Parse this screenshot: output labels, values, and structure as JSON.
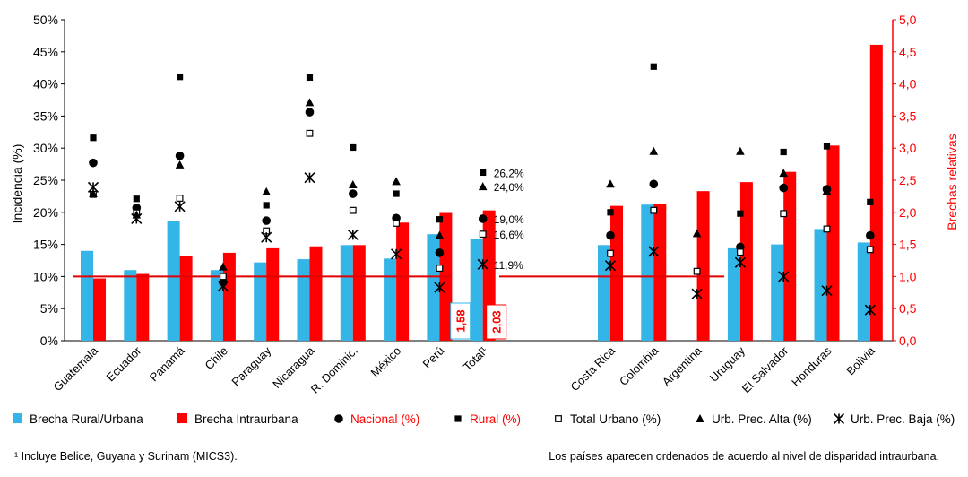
{
  "chart_data": {
    "type": "bar",
    "title": "",
    "ylabel": "Incidencia (%)",
    "y2label": "Brechas relativas",
    "ylim": [
      0,
      50
    ],
    "y2lim": [
      0,
      5
    ],
    "y_ticks": [
      "0%",
      "5%",
      "10%",
      "15%",
      "20%",
      "25%",
      "30%",
      "35%",
      "40%",
      "45%",
      "50%"
    ],
    "y2_ticks": [
      "0,0",
      "0,5",
      "1,0",
      "1,5",
      "2,0",
      "2,5",
      "3,0",
      "3,5",
      "4,0",
      "4,5",
      "5,0"
    ],
    "categories": [
      "Guatemala",
      "Ecuador",
      "Panamá",
      "Chile",
      "Paraguay",
      "Nicaragua",
      "R. Dominic.",
      "México",
      "Perú",
      "Total¹",
      "Costa Rica",
      "Colombia",
      "Argentina",
      "Uruguay",
      "El Salvador",
      "Honduras",
      "Bolivia"
    ],
    "bar_series": [
      {
        "name": "Brecha Rural/Urbana",
        "color": "#33b5e8",
        "axis": "right",
        "values": [
          1.4,
          1.1,
          1.86,
          1.1,
          1.22,
          1.27,
          1.49,
          1.28,
          1.66,
          1.58,
          1.49,
          2.12,
          null,
          1.44,
          1.5,
          1.74,
          1.53
        ]
      },
      {
        "name": "Brecha Intraurbana",
        "color": "#ff0000",
        "axis": "right",
        "values": [
          0.97,
          1.04,
          1.32,
          1.37,
          1.44,
          1.47,
          1.49,
          1.84,
          1.99,
          2.03,
          2.1,
          2.13,
          2.33,
          2.47,
          2.63,
          3.04,
          4.61
        ]
      }
    ],
    "marker_series": [
      {
        "name": "Nacional (%)",
        "marker": "circle",
        "axis": "left",
        "values": [
          27.7,
          20.7,
          28.8,
          9.1,
          18.7,
          35.6,
          22.9,
          19.1,
          13.7,
          19.0,
          16.4,
          24.4,
          null,
          14.6,
          23.8,
          23.6,
          16.4
        ]
      },
      {
        "name": "Rural (%)",
        "marker": "square",
        "axis": "left",
        "values": [
          31.6,
          22.1,
          41.1,
          null,
          21.1,
          41.0,
          30.1,
          22.9,
          18.9,
          26.2,
          20.0,
          42.7,
          null,
          19.8,
          29.4,
          30.3,
          21.6
        ]
      },
      {
        "name": "Total Urbano (%)",
        "marker": "open-square",
        "axis": "left",
        "values": [
          22.8,
          19.9,
          22.2,
          10.0,
          17.1,
          32.3,
          20.3,
          18.3,
          11.3,
          16.6,
          13.6,
          20.3,
          10.8,
          13.8,
          19.8,
          17.4,
          14.2
        ]
      },
      {
        "name": "Urb. Prec. Alta (%)",
        "marker": "triangle",
        "axis": "left",
        "values": [
          22.9,
          19.6,
          27.4,
          11.5,
          23.2,
          37.1,
          24.3,
          24.8,
          16.4,
          24.0,
          24.4,
          29.5,
          16.7,
          29.5,
          26.1,
          23.3,
          null
        ]
      },
      {
        "name": "Urb. Prec. Baja (%)",
        "marker": "asterisk",
        "axis": "left",
        "values": [
          23.9,
          19.0,
          20.9,
          8.5,
          16.1,
          25.4,
          16.5,
          13.5,
          8.3,
          11.9,
          11.7,
          13.9,
          7.3,
          12.2,
          10.0,
          7.8,
          4.8
        ]
      }
    ],
    "total_labels": [
      "26,2%",
      "24,0%",
      "19,0%",
      "16,6%",
      "11,9%"
    ],
    "total_boxes": {
      "rural_urbana": "1,58",
      "intraurbana": "2,03"
    },
    "reference_line": {
      "value": 1.0,
      "axis": "right",
      "color": "#e00000"
    },
    "legend_position": "bottom",
    "grid": false
  },
  "legend": [
    {
      "label": "Brecha Rural/Urbana",
      "red": false
    },
    {
      "label": "Brecha Intraurbana",
      "red": false
    },
    {
      "label": "Nacional (%)",
      "red": true
    },
    {
      "label": "Rural (%)",
      "red": true
    },
    {
      "label": "Total Urbano (%)",
      "red": false
    },
    {
      "label": "Urb. Prec. Alta (%)",
      "red": false
    },
    {
      "label": "Urb. Prec. Baja (%)",
      "red": false
    }
  ],
  "footnote_left": "¹ Incluye Belice, Guyana y Surinam (MICS3).",
  "footnote_right": "Los países aparecen ordenados de acuerdo al nivel de disparidad intraurbana."
}
